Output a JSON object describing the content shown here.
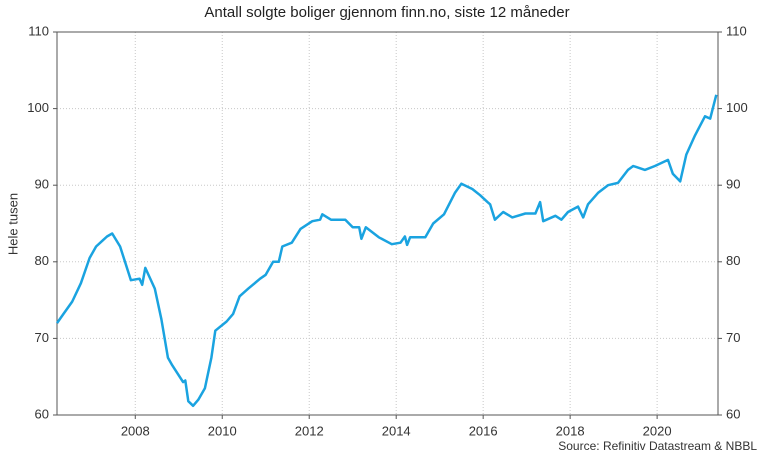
{
  "chart_data": {
    "type": "line",
    "title": "Antall solgte boliger gjennom finn.no, siste 12 måneder",
    "y_label": "Hele tusen",
    "source": "Source: Refinitiv Datastream & NBBL",
    "xlim": [
      2006.2,
      2021.4
    ],
    "xticks": [
      2008,
      2010,
      2012,
      2014,
      2016,
      2018,
      2020
    ],
    "ylim": [
      60,
      110
    ],
    "yticks": [
      60,
      70,
      80,
      90,
      100,
      110
    ],
    "grid": true,
    "right_axis": true,
    "series": [
      {
        "name": "Antall solgte boliger",
        "color": "#1aa3e0",
        "x": [
          2006.2,
          2006.35,
          2006.55,
          2006.75,
          2006.95,
          2007.1,
          2007.25,
          2007.35,
          2007.47,
          2007.65,
          2007.9,
          2008.1,
          2008.16,
          2008.23,
          2008.45,
          2008.6,
          2008.75,
          2008.85,
          2009.1,
          2009.15,
          2009.22,
          2009.33,
          2009.45,
          2009.6,
          2009.75,
          2009.84,
          2010.1,
          2010.25,
          2010.4,
          2010.6,
          2010.87,
          2011.0,
          2011.17,
          2011.3,
          2011.38,
          2011.6,
          2011.8,
          2012.07,
          2012.25,
          2012.3,
          2012.5,
          2012.83,
          2013.0,
          2013.15,
          2013.2,
          2013.3,
          2013.6,
          2013.9,
          2014.1,
          2014.2,
          2014.25,
          2014.32,
          2014.67,
          2014.85,
          2015.1,
          2015.35,
          2015.5,
          2015.75,
          2015.93,
          2016.1,
          2016.16,
          2016.27,
          2016.46,
          2016.67,
          2016.97,
          2017.2,
          2017.31,
          2017.38,
          2017.66,
          2017.8,
          2017.95,
          2018.18,
          2018.3,
          2018.41,
          2018.64,
          2018.87,
          2019.1,
          2019.33,
          2019.45,
          2019.72,
          2019.95,
          2020.25,
          2020.36,
          2020.53,
          2020.67,
          2020.87,
          2021.1,
          2021.22,
          2021.36
        ],
        "values": [
          72,
          73.2,
          74.8,
          77.2,
          80.5,
          82,
          82.8,
          83.3,
          83.7,
          82,
          77.6,
          77.8,
          77,
          79.2,
          76.5,
          72.5,
          67.5,
          66.5,
          64.3,
          64.5,
          61.8,
          61.2,
          62,
          63.5,
          67.5,
          71,
          72.2,
          73.2,
          75.5,
          76.5,
          77.8,
          78.3,
          80,
          80,
          82,
          82.5,
          84.3,
          85.3,
          85.5,
          86.2,
          85.5,
          85.5,
          84.5,
          84.5,
          83,
          84.5,
          83.2,
          82.3,
          82.5,
          83.3,
          82.2,
          83.2,
          83.2,
          85,
          86.2,
          89,
          90.2,
          89.5,
          88.7,
          87.8,
          87.5,
          85.5,
          86.5,
          85.8,
          86.3,
          86.3,
          87.8,
          85.3,
          86,
          85.5,
          86.5,
          87.2,
          85.8,
          87.5,
          89,
          90,
          90.3,
          92,
          92.5,
          92,
          92.5,
          93.3,
          91.5,
          90.5,
          94,
          96.5,
          99,
          98.7,
          101.8
        ]
      }
    ]
  }
}
